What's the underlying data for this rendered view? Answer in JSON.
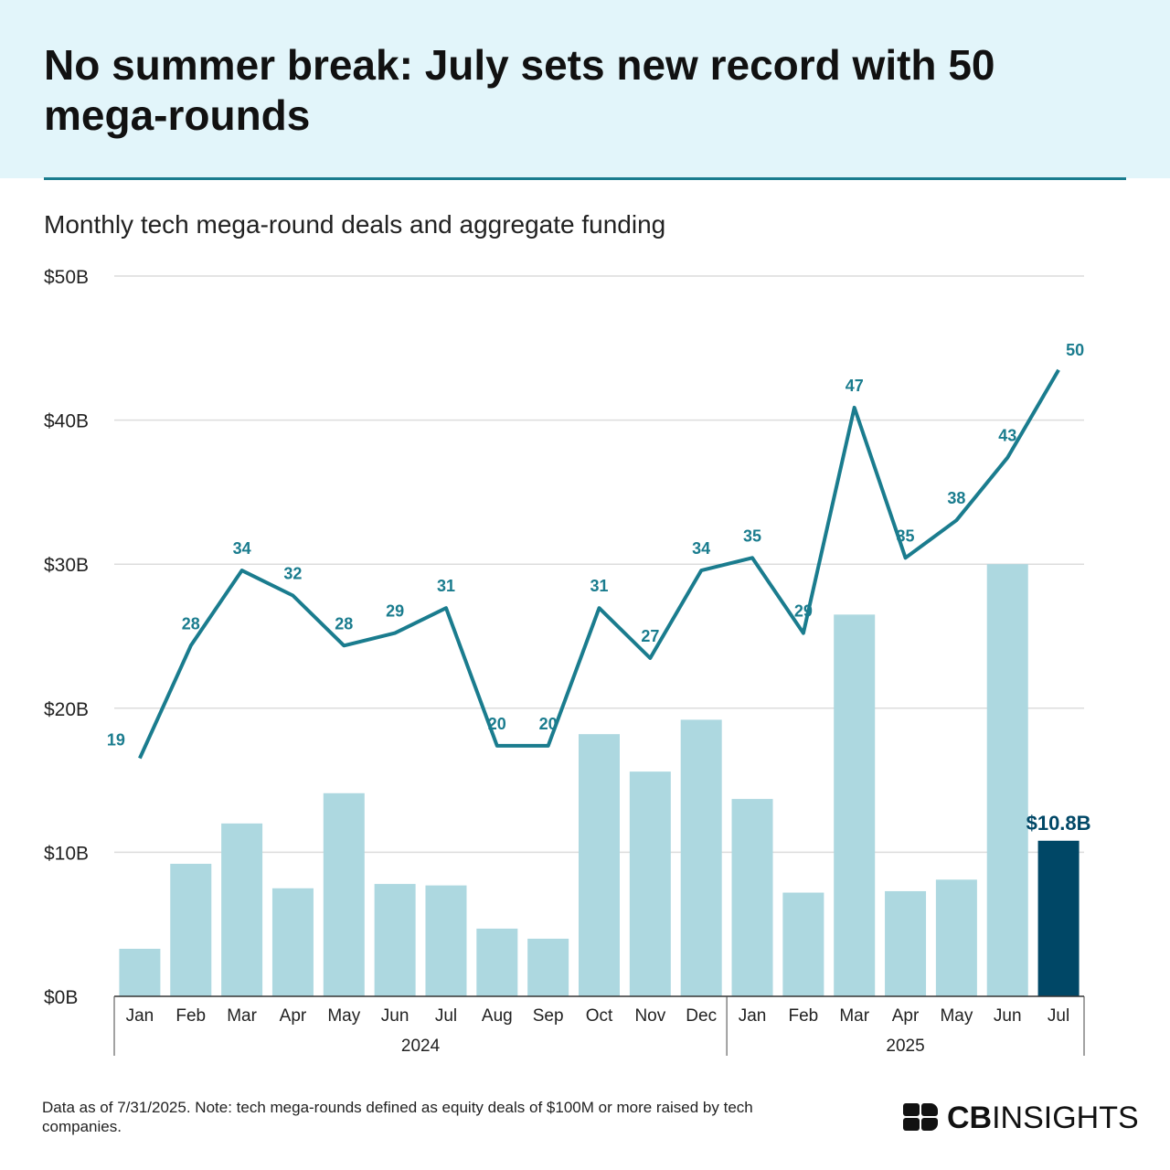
{
  "header": {
    "title": "No summer break: July sets new record with 50 mega-rounds"
  },
  "subtitle": "Monthly tech mega-round deals and aggregate funding",
  "footnote": "Data as of 7/31/2025. Note: tech mega-rounds defined as equity deals of $100M or more raised by tech companies.",
  "logo": {
    "bold": "CB",
    "light": "INSIGHTS"
  },
  "colors": {
    "bar": "#add8e0",
    "bar_highlight": "#004766",
    "line": "#1a7c8e",
    "grid": "#dcdcdc",
    "highlight_label": "#004766"
  },
  "chart_data": {
    "type": "bar",
    "title": "Monthly tech mega-round deals and aggregate funding",
    "categories": [
      "Jan",
      "Feb",
      "Mar",
      "Apr",
      "May",
      "Jun",
      "Jul",
      "Aug",
      "Sep",
      "Oct",
      "Nov",
      "Dec",
      "Jan",
      "Feb",
      "Mar",
      "Apr",
      "May",
      "Jun",
      "Jul"
    ],
    "groups": [
      {
        "label": "2024",
        "count": 12
      },
      {
        "label": "2025",
        "count": 7
      }
    ],
    "y_ticks": [
      "$0B",
      "$10B",
      "$20B",
      "$30B",
      "$40B",
      "$50B"
    ],
    "ylim": [
      0,
      50
    ],
    "series": [
      {
        "name": "Aggregate funding ($B)",
        "type": "bar",
        "values": [
          3.3,
          9.2,
          12.0,
          7.5,
          14.1,
          7.8,
          7.7,
          4.7,
          4.0,
          18.2,
          15.6,
          19.2,
          13.7,
          7.2,
          26.5,
          7.3,
          8.1,
          30.0,
          10.8
        ],
        "highlight_index": 18,
        "highlight_label": "$10.8B"
      },
      {
        "name": "Mega-round deals",
        "type": "line",
        "values": [
          19,
          28,
          34,
          32,
          28,
          29,
          31,
          20,
          20,
          31,
          27,
          34,
          35,
          29,
          47,
          35,
          38,
          43,
          50
        ],
        "labels": [
          "19",
          "28",
          "34",
          "32",
          "28",
          "29",
          "31",
          "20",
          "20",
          "31",
          "27",
          "34",
          "35",
          "29",
          "47",
          "35",
          "38",
          "43",
          "50"
        ]
      }
    ],
    "xlabel": "",
    "ylabel": ""
  }
}
